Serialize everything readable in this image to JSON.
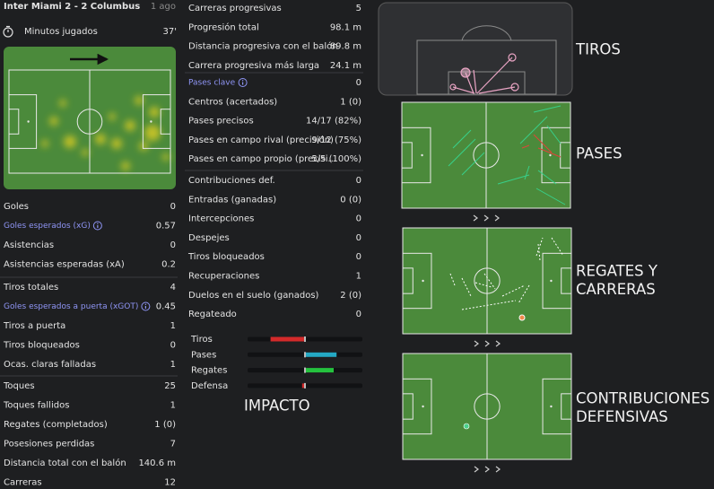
{
  "header": {
    "match": "Inter Miami 2 - 2 Columbus",
    "time": "1 ago"
  },
  "minutes": {
    "label": "Minutos jugados",
    "value": "37'"
  },
  "left_sections": [
    [
      {
        "label": "Goles",
        "value": 0
      },
      {
        "label": "Goles esperados (xG)",
        "value": 0.57,
        "highlight": true
      },
      {
        "label": "Asistencias",
        "value": 0
      },
      {
        "label": "Asistencias esperadas (xA)",
        "value": 0.2
      }
    ],
    [
      {
        "label": "Tiros totales",
        "value": 4
      },
      {
        "label": "Goles esperados a puerta (xGOT)",
        "value": 0.45,
        "highlight": true
      },
      {
        "label": "Tiros a puerta",
        "value": 1
      },
      {
        "label": "Tiros bloqueados",
        "value": 0
      },
      {
        "label": "Ocas. claras falladas",
        "value": 1
      }
    ],
    [
      {
        "label": "Toques",
        "value": 25
      },
      {
        "label": "Toques fallidos",
        "value": 1
      },
      {
        "label": "Regates (completados)",
        "value": "1 (0)"
      },
      {
        "label": "Posesiones perdidas",
        "value": 7
      },
      {
        "label": "Distancia total con el balón",
        "value": "140.6 m"
      },
      {
        "label": "Carreras",
        "value": 12
      }
    ]
  ],
  "middle_sections": [
    [
      {
        "label": "Carreras progresivas",
        "value": 5
      },
      {
        "label": "Progresión total",
        "value": "98.1 m"
      },
      {
        "label": "Distancia progresiva con el balón",
        "value": "89.8 m"
      },
      {
        "label": "Carrera progresiva más larga",
        "value": "24.1 m"
      }
    ],
    [
      {
        "label": "Pases clave",
        "value": 0,
        "highlight": true
      },
      {
        "label": "Centros (acertados)",
        "value": "1 (0)"
      },
      {
        "label": "Pases precisos",
        "value": "14/17 (82%)"
      },
      {
        "label": "Pases en campo rival (precisión)",
        "value": "9/12 (75%)"
      },
      {
        "label": "Pases en campo propio (precisi...",
        "value": "5/5 (100%)"
      }
    ],
    [
      {
        "label": "Contribuciones def.",
        "value": 0
      },
      {
        "label": "Entradas (ganadas)",
        "value": "0 (0)"
      },
      {
        "label": "Intercepciones",
        "value": 0
      },
      {
        "label": "Despejes",
        "value": 0
      },
      {
        "label": "Tiros bloqueados",
        "value": 0
      },
      {
        "label": "Recuperaciones",
        "value": 1
      },
      {
        "label": "Duelos en el suelo (ganados)",
        "value": "2 (0)"
      },
      {
        "label": "Regateado",
        "value": 0
      }
    ]
  ],
  "impact": {
    "title": "IMPACTO",
    "range": [
      -1,
      1
    ],
    "rows": [
      {
        "label": "Tiros",
        "value": -0.6,
        "color": "#d42a2a"
      },
      {
        "label": "Pases",
        "value": 0.55,
        "color": "#24a9c4"
      },
      {
        "label": "Regates",
        "value": 0.5,
        "color": "#24c23e"
      },
      {
        "label": "Defensa",
        "value": -0.05,
        "color": "#d42a2a"
      }
    ]
  },
  "maps": [
    {
      "title_lines": [
        "TIROS"
      ]
    },
    {
      "title_lines": [
        "PASES"
      ]
    },
    {
      "title_lines": [
        "REGATES Y",
        "CARRERAS"
      ]
    },
    {
      "title_lines": [
        "CONTRIBUCIONES",
        "DEFENSIVAS"
      ]
    }
  ]
}
